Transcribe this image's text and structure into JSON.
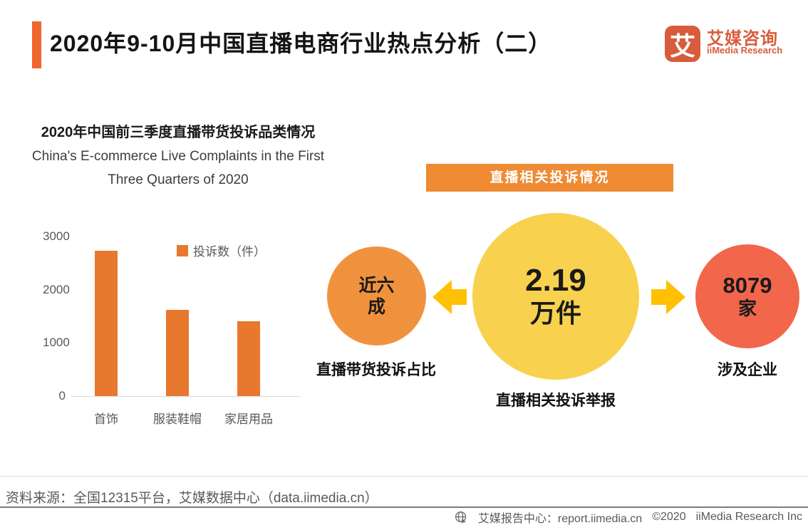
{
  "header": {
    "title": "2020年9-10月中国直播电商行业热点分析（二）",
    "logo": {
      "symbol": "艾",
      "name_cn": "艾媒咨询",
      "name_en": "iiMedia Research"
    }
  },
  "chart": {
    "title_cn": "2020年中国前三季度直播带货投诉品类情况",
    "subtitle_en_line1": "China's E-commerce Live Complaints in the First",
    "subtitle_en_line2": "Three Quarters of 2020",
    "legend_label": "投诉数（件）"
  },
  "chart_data": {
    "type": "bar",
    "title": "2020年中国前三季度直播带货投诉品类情况",
    "subtitle": "China's E-commerce Live Complaints in the First Three Quarters of 2020",
    "categories": [
      "首饰",
      "服装鞋帽",
      "家居用品"
    ],
    "values": [
      2730,
      1615,
      1410
    ],
    "legend": [
      "投诉数（件）"
    ],
    "xlabel": "",
    "ylabel": "",
    "ylim": [
      0,
      3000
    ],
    "yticks": [
      0,
      1000,
      2000,
      3000
    ],
    "grid": false,
    "legend_position": "top-right",
    "bar_color": "#E8782E"
  },
  "infographic": {
    "banner": "直播相关投诉情况",
    "center": {
      "value": "2.19",
      "unit": "万件",
      "label": "直播相关投诉举报",
      "color": "#F8D24E"
    },
    "left": {
      "value": "近六成",
      "label": "直播带货投诉占比",
      "color": "#F0923D"
    },
    "right": {
      "value": "8079",
      "unit": "家",
      "label": "涉及企业",
      "color": "#F2664B"
    }
  },
  "footer": {
    "source": "资料来源：全国12315平台，艾媒数据中心（data.iimedia.cn）",
    "report_center": "艾媒报告中心：report.iimedia.cn",
    "copyright": "©2020",
    "company": "iiMedia Research Inc"
  },
  "colors": {
    "accent_orange": "#F0662F",
    "bar_orange": "#E8782E",
    "banner_orange": "#EE8B33",
    "circle_yellow": "#F8D24E",
    "circle_orange": "#F0923D",
    "circle_red": "#F2664B",
    "arrow_gold": "#FFC001",
    "logo_red": "#D85C3B",
    "text_gray": "#595959"
  }
}
